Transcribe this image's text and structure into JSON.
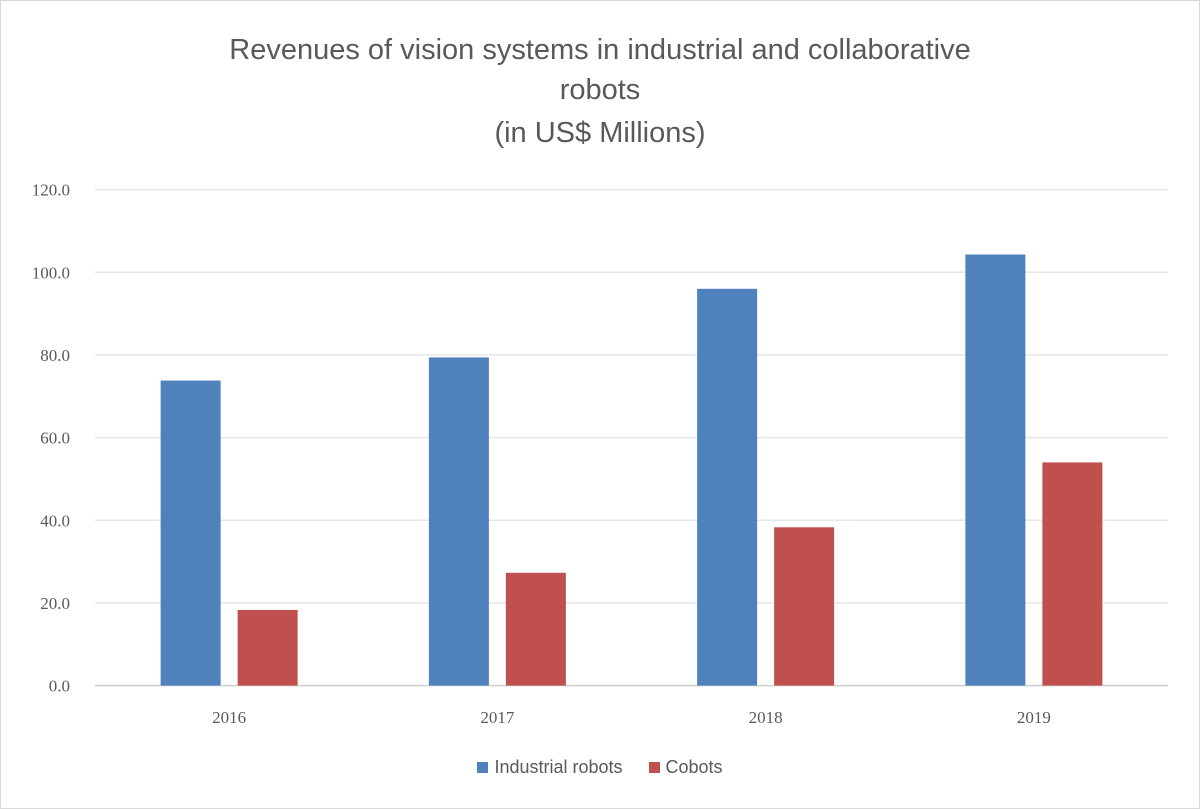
{
  "chart_data": {
    "type": "bar",
    "title_lines": [
      "Revenues of vision systems in industrial and collaborative",
      "robots",
      "(in US$ Millions)"
    ],
    "categories": [
      "2016",
      "2017",
      "2018",
      "2019"
    ],
    "series": [
      {
        "name": "Industrial robots",
        "color": "#4f81bd",
        "values": [
          73.8,
          79.4,
          96.0,
          104.3
        ]
      },
      {
        "name": "Cobots",
        "color": "#c0504d",
        "values": [
          18.3,
          27.3,
          38.3,
          54.0
        ]
      }
    ],
    "yticks": [
      "0.0",
      "20.0",
      "40.0",
      "60.0",
      "80.0",
      "100.0",
      "120.0"
    ],
    "ylim": [
      0,
      120
    ],
    "xlabel": "",
    "ylabel": "",
    "grid": true,
    "legend_position": "bottom"
  }
}
